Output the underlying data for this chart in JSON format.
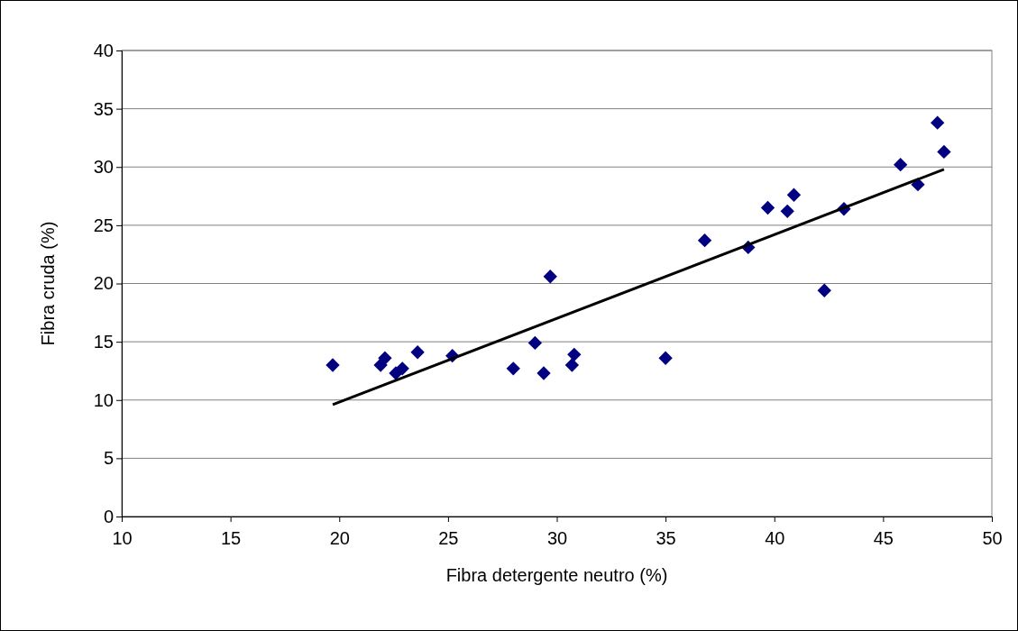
{
  "chart_data": {
    "type": "scatter",
    "xlabel": "Fibra detergente neutro (%)",
    "ylabel": "Fibra cruda (%)",
    "xlim": [
      10,
      50
    ],
    "ylim": [
      0,
      40
    ],
    "xticks": [
      10,
      15,
      20,
      25,
      30,
      35,
      40,
      45,
      50
    ],
    "yticks": [
      0,
      5,
      10,
      15,
      20,
      25,
      30,
      35,
      40
    ],
    "grid": "y",
    "series": [
      {
        "marker": "diamond",
        "color": "#000080",
        "x": [
          19.7,
          21.9,
          22.1,
          22.6,
          22.9,
          23.6,
          25.2,
          28.0,
          29.0,
          29.4,
          29.7,
          30.7,
          30.8,
          35.0,
          36.8,
          38.8,
          39.7,
          40.6,
          40.9,
          42.3,
          43.2,
          45.8,
          46.6,
          47.5,
          47.8
        ],
        "values": [
          13.0,
          13.0,
          13.6,
          12.3,
          12.7,
          14.1,
          13.8,
          12.7,
          14.9,
          12.3,
          20.6,
          13.0,
          13.9,
          13.6,
          23.7,
          23.1,
          26.5,
          26.2,
          27.6,
          19.4,
          26.4,
          30.2,
          28.5,
          33.8,
          31.3
        ]
      },
      {
        "type": "line",
        "color": "#000000",
        "line_style": "solid",
        "x": [
          19.7,
          47.8
        ],
        "values": [
          9.6,
          29.8
        ]
      }
    ]
  }
}
